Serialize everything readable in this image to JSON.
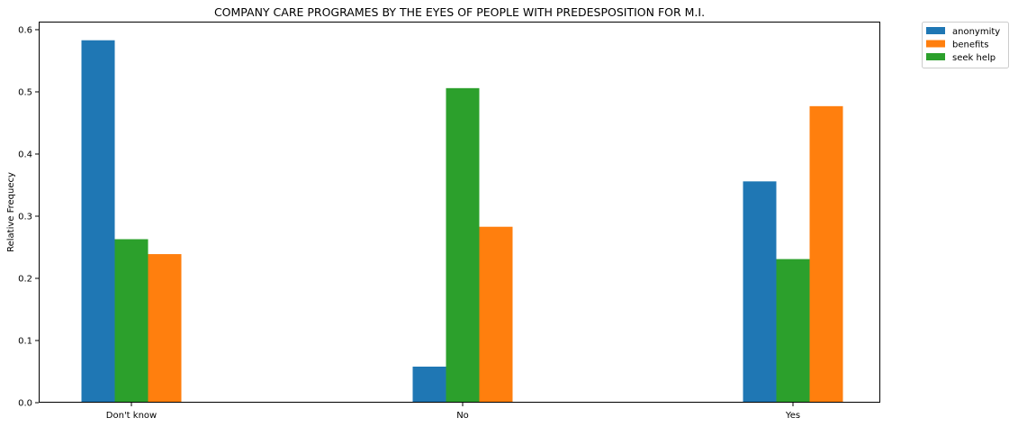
{
  "chart_data": {
    "type": "bar",
    "title": "COMPANY CARE PROGRAMES BY THE EYES OF PEOPLE WITH PREDESPOSITION FOR M.I.",
    "xlabel": "",
    "ylabel": "Relative Frequecy",
    "categories": [
      "Don't know",
      "No",
      "Yes"
    ],
    "series": [
      {
        "name": "anonymity",
        "color": "#1f77b4",
        "values": [
          0.583,
          0.058,
          0.356
        ]
      },
      {
        "name": "seek help",
        "color": "#2ca02c",
        "values": [
          0.263,
          0.506,
          0.231
        ]
      },
      {
        "name": "benefits",
        "color": "#ff7f0e",
        "values": [
          0.239,
          0.283,
          0.477
        ]
      }
    ],
    "legend_order": [
      "anonymity",
      "benefits",
      "seek help"
    ],
    "ylim": [
      0,
      0.613
    ],
    "yticks": [
      0.0,
      0.1,
      0.2,
      0.3,
      0.4,
      0.5,
      0.6
    ],
    "ytick_labels": [
      "0.0",
      "0.1",
      "0.2",
      "0.3",
      "0.4",
      "0.5",
      "0.6"
    ],
    "grid": false,
    "legend_position": "outside-top-right"
  }
}
